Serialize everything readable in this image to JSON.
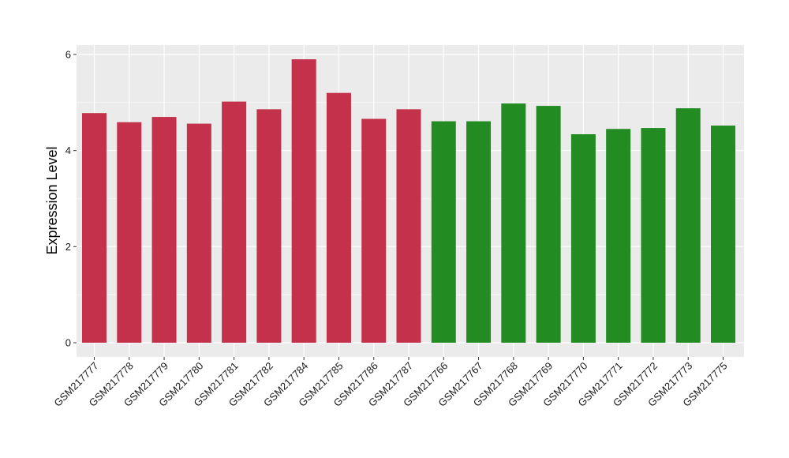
{
  "chart_data": {
    "type": "bar",
    "title": "",
    "xlabel": "",
    "ylabel": "Expression Level",
    "ylim": [
      0,
      6
    ],
    "yticks": [
      0,
      2,
      4,
      6
    ],
    "grid": true,
    "legend": "none",
    "panel_background": "#EBEBEB",
    "gridline_color": "#FFFFFF",
    "categories": [
      "GSM217777",
      "GSM217778",
      "GSM217779",
      "GSM217780",
      "GSM217781",
      "GSM217782",
      "GSM217784",
      "GSM217785",
      "GSM217786",
      "GSM217787",
      "GSM217766",
      "GSM217767",
      "GSM217768",
      "GSM217769",
      "GSM217770",
      "GSM217771",
      "GSM217772",
      "GSM217773",
      "GSM217775"
    ],
    "values": [
      4.78,
      4.59,
      4.7,
      4.56,
      5.02,
      4.86,
      5.9,
      5.2,
      4.66,
      4.86,
      4.61,
      4.61,
      4.98,
      4.93,
      4.34,
      4.45,
      4.47,
      4.88,
      4.52
    ],
    "colors": [
      "#C3314A",
      "#C3314A",
      "#C3314A",
      "#C3314A",
      "#C3314A",
      "#C3314A",
      "#C3314A",
      "#C3314A",
      "#C3314A",
      "#C3314A",
      "#228B22",
      "#228B22",
      "#228B22",
      "#228B22",
      "#228B22",
      "#228B22",
      "#228B22",
      "#228B22",
      "#228B22"
    ]
  }
}
